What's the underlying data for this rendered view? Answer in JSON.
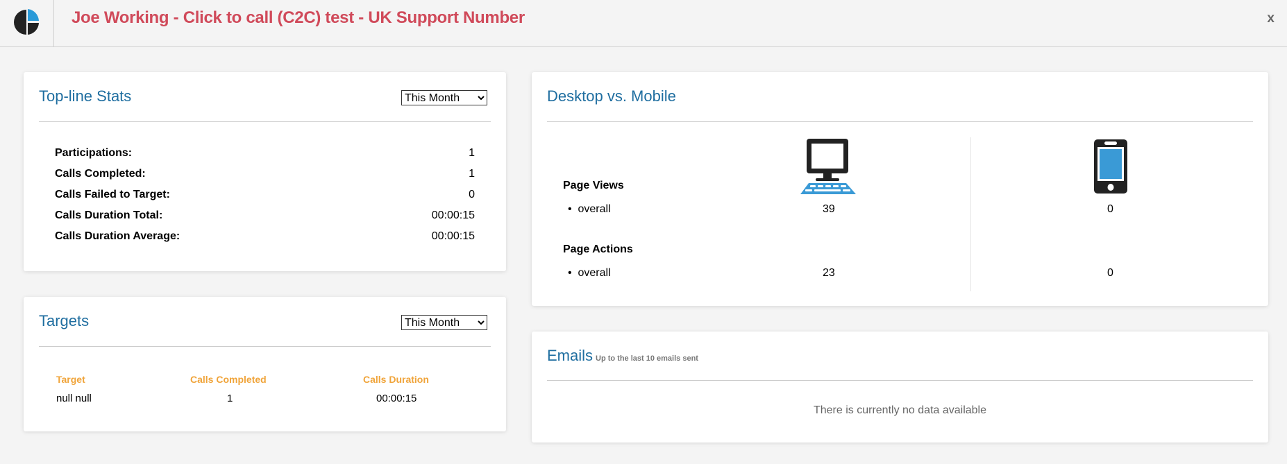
{
  "header": {
    "title": "Joe Working - Click to call (C2C) test - UK Support Number",
    "close_label": "x"
  },
  "topline": {
    "title": "Top-line Stats",
    "period": "This Month",
    "stats": [
      {
        "label": "Participations:",
        "value": "1"
      },
      {
        "label": "Calls Completed:",
        "value": "1"
      },
      {
        "label": "Calls Failed to Target:",
        "value": "0"
      },
      {
        "label": "Calls Duration Total:",
        "value": "00:00:15"
      },
      {
        "label": "Calls Duration Average:",
        "value": "00:00:15"
      }
    ]
  },
  "targets": {
    "title": "Targets",
    "period": "This Month",
    "columns": [
      "Target",
      "Calls Completed",
      "Calls Duration"
    ],
    "rows": [
      [
        "null null",
        "1",
        "00:00:15"
      ]
    ]
  },
  "devices": {
    "title": "Desktop vs. Mobile",
    "page_views_label": "Page Views",
    "page_actions_label": "Page Actions",
    "overall_label": "overall",
    "desktop": {
      "page_views": "39",
      "page_actions": "23"
    },
    "mobile": {
      "page_views": "0",
      "page_actions": "0"
    },
    "icons": [
      "desktop-computer-icon",
      "mobile-phone-icon"
    ]
  },
  "emails": {
    "title": "Emails",
    "subtitle": "Up to the last 10 emails sent",
    "empty": "There is currently no data available"
  },
  "colors": {
    "title": "#d04a5a",
    "heading": "#1f6ea0",
    "column_header": "#f0a43a",
    "icon_blue": "#3a9ad6"
  }
}
